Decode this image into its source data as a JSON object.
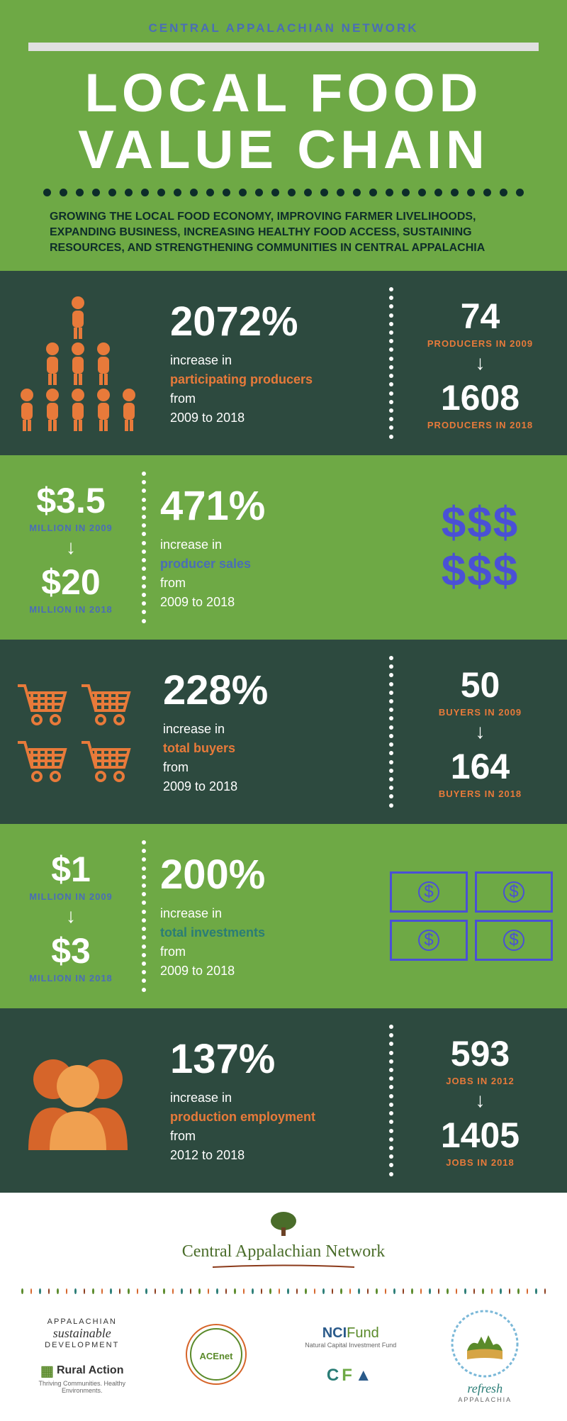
{
  "header": {
    "org_name": "CENTRAL APPALACHIAN NETWORK",
    "title_line1": "LOCAL FOOD",
    "title_line2": "VALUE CHAIN",
    "description": "GROWING THE LOCAL FOOD ECONOMY, IMPROVING FARMER LIVELIHOODS, EXPANDING BUSINESS, INCREASING HEALTHY FOOD ACCESS, SUSTAINING RESOURCES, AND STRENGTHENING COMMUNITIES IN CENTRAL APPALACHIA"
  },
  "colors": {
    "green_bg": "#6ea945",
    "dark_bg": "#2d4a3f",
    "orange": "#e87a3a",
    "blue": "#4a6db8",
    "indigo": "#4a50d6",
    "teal": "#2a7d76",
    "white": "#ffffff",
    "dark_text": "#0d2d2a"
  },
  "row1": {
    "percent": "2072%",
    "intro": "increase in",
    "highlight": "participating producers",
    "from": "from",
    "range": "2009 to 2018",
    "before_val": "74",
    "before_label": "PRODUCERS IN 2009",
    "after_val": "1608",
    "after_label": "PRODUCERS IN 2018"
  },
  "row2": {
    "before_val": "$3.5",
    "before_label": "MILLION IN 2009",
    "after_val": "$20",
    "after_label": "MILLION IN 2018",
    "percent": "471%",
    "intro": "increase in",
    "highlight": "producer sales",
    "from": "from",
    "range": "2009 to 2018",
    "dollars": "$$$"
  },
  "row3": {
    "percent": "228%",
    "intro": "increase in",
    "highlight": "total buyers",
    "from": "from",
    "range": "2009 to 2018",
    "before_val": "50",
    "before_label": "BUYERS IN 2009",
    "after_val": "164",
    "after_label": "BUYERS IN 2018"
  },
  "row4": {
    "before_val": "$1",
    "before_label": "MILLION IN 2009",
    "after_val": "$3",
    "after_label": "MILLION IN 2018",
    "percent": "200%",
    "intro": "increase in",
    "highlight": "total investments",
    "from": "from",
    "range": "2009 to 2018",
    "bill": "$"
  },
  "row5": {
    "percent": "137%",
    "intro": "increase in",
    "highlight": "production employment",
    "from": "from",
    "range": "2012 to 2018",
    "before_val": "593",
    "before_label": "JOBS IN 2012",
    "after_val": "1405",
    "after_label": "JOBS IN 2018"
  },
  "footer": {
    "main_logo": "Central Appalachian Network",
    "logos": {
      "asd1": "APPALACHIAN",
      "asd2": "sustainable",
      "asd3": "DEVELOPMENT",
      "rural": "Rural Action",
      "rural_sub": "Thriving Communities. Healthy Environments.",
      "acenet": "ACEnet",
      "nci": "NCIFund",
      "nci_sub": "Natural Capital Investment Fund",
      "cfa": "CFA",
      "refresh": "refresh",
      "refresh_sub": "APPALACHIA"
    }
  }
}
